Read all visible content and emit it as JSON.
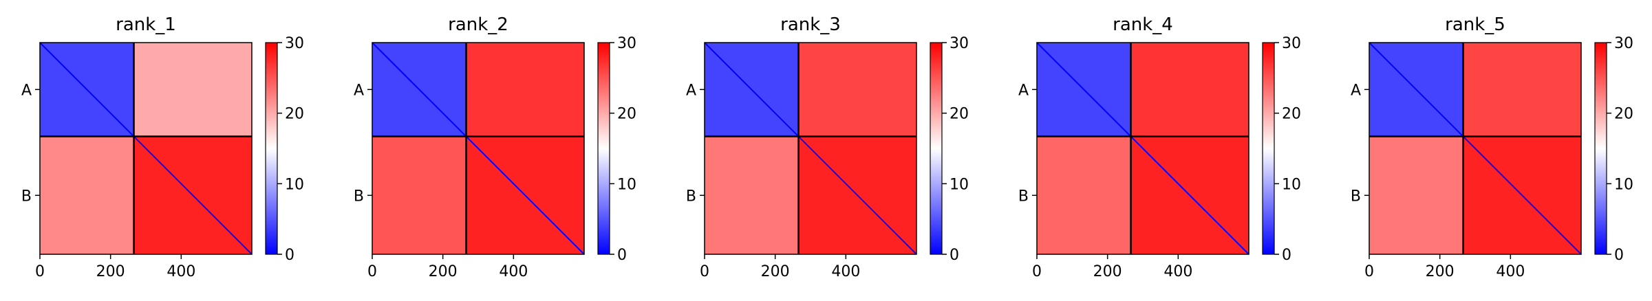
{
  "chart_data": [
    {
      "type": "heatmap",
      "title": "rank_1",
      "xticks": [
        0,
        200,
        400
      ],
      "yticks": [
        "A",
        "B"
      ],
      "xlim": [
        0,
        600
      ],
      "ylim": [
        600,
        0
      ],
      "chain_boundary": 266,
      "colorbar": {
        "min": 0,
        "max": 30,
        "ticks": [
          0,
          10,
          20,
          30
        ],
        "colors": [
          "#0000ff",
          "#ffffff",
          "#ff0000"
        ]
      },
      "regions": {
        "AA": 4,
        "AB": 20,
        "BA": 22,
        "BB": 28,
        "diagonal": 0
      }
    },
    {
      "type": "heatmap",
      "title": "rank_2",
      "xticks": [
        0,
        200,
        400
      ],
      "yticks": [
        "A",
        "B"
      ],
      "xlim": [
        0,
        600
      ],
      "ylim": [
        600,
        0
      ],
      "chain_boundary": 266,
      "colorbar": {
        "min": 0,
        "max": 30,
        "ticks": [
          0,
          10,
          20,
          30
        ],
        "colors": [
          "#0000ff",
          "#ffffff",
          "#ff0000"
        ]
      },
      "regions": {
        "AA": 4,
        "AB": 27,
        "BA": 25,
        "BB": 28,
        "diagonal": 0
      }
    },
    {
      "type": "heatmap",
      "title": "rank_3",
      "xticks": [
        0,
        200,
        400
      ],
      "yticks": [
        "A",
        "B"
      ],
      "xlim": [
        0,
        600
      ],
      "ylim": [
        600,
        0
      ],
      "chain_boundary": 266,
      "colorbar": {
        "min": 0,
        "max": 30,
        "ticks": [
          0,
          10,
          20,
          30
        ],
        "colors": [
          "#0000ff",
          "#ffffff",
          "#ff0000"
        ]
      },
      "regions": {
        "AA": 4,
        "AB": 26,
        "BA": 23,
        "BB": 28,
        "diagonal": 0
      }
    },
    {
      "type": "heatmap",
      "title": "rank_4",
      "xticks": [
        0,
        200,
        400
      ],
      "yticks": [
        "A",
        "B"
      ],
      "xlim": [
        0,
        600
      ],
      "ylim": [
        600,
        0
      ],
      "chain_boundary": 266,
      "colorbar": {
        "min": 0,
        "max": 30,
        "ticks": [
          0,
          10,
          20,
          30
        ],
        "colors": [
          "#0000ff",
          "#ffffff",
          "#ff0000"
        ]
      },
      "regions": {
        "AA": 4,
        "AB": 27,
        "BA": 24,
        "BB": 28,
        "diagonal": 0
      }
    },
    {
      "type": "heatmap",
      "title": "rank_5",
      "xticks": [
        0,
        200,
        400
      ],
      "yticks": [
        "A",
        "B"
      ],
      "xlim": [
        0,
        600
      ],
      "ylim": [
        600,
        0
      ],
      "chain_boundary": 266,
      "colorbar": {
        "min": 0,
        "max": 30,
        "ticks": [
          0,
          10,
          20,
          30
        ],
        "colors": [
          "#0000ff",
          "#ffffff",
          "#ff0000"
        ]
      },
      "regions": {
        "AA": 4,
        "AB": 26,
        "BA": 23,
        "BB": 28,
        "diagonal": 0
      }
    }
  ]
}
